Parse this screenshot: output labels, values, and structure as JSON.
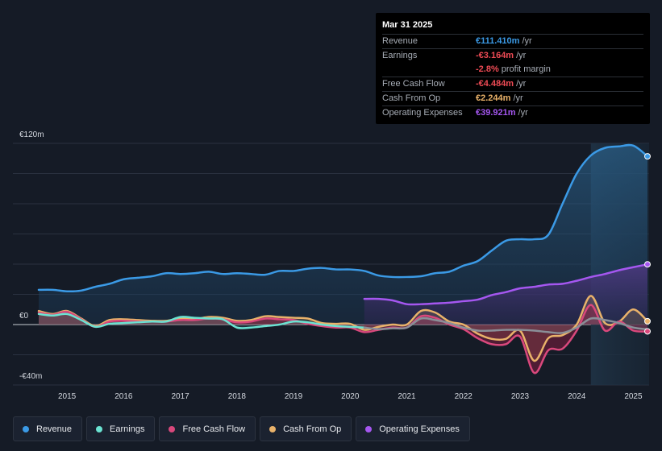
{
  "tooltip": {
    "date": "Mar 31 2025",
    "rows": [
      {
        "label": "Revenue",
        "value": "€111.410m",
        "unit": "/yr",
        "color": "#3b9ae6"
      },
      {
        "label": "Earnings",
        "value": "-€3.164m",
        "unit": "/yr",
        "color": "#ef4b55"
      },
      {
        "label": "",
        "value": "-2.8%",
        "unit": "profit margin",
        "color": "#ef4b55"
      },
      {
        "label": "Free Cash Flow",
        "value": "-€4.484m",
        "unit": "/yr",
        "color": "#ef4b55"
      },
      {
        "label": "Cash From Op",
        "value": "€2.244m",
        "unit": "/yr",
        "color": "#e9b26a"
      },
      {
        "label": "Operating Expenses",
        "value": "€39.921m",
        "unit": "/yr",
        "color": "#a557f0"
      }
    ]
  },
  "legend": [
    {
      "name": "Revenue",
      "color": "#3b9ae6"
    },
    {
      "name": "Earnings",
      "color": "#6be3d2"
    },
    {
      "name": "Free Cash Flow",
      "color": "#d9487c"
    },
    {
      "name": "Cash From Op",
      "color": "#e9b26a"
    },
    {
      "name": "Operating Expenses",
      "color": "#a557f0"
    }
  ],
  "chart_data": {
    "type": "area",
    "title": "",
    "unit": "€m",
    "ylim": [
      -40,
      120
    ],
    "y_tick_labels": [
      "€120m",
      "€0",
      "-€40m"
    ],
    "y_tick_values": [
      120,
      0,
      -40
    ],
    "x_tick_labels": [
      "2015",
      "2016",
      "2017",
      "2018",
      "2019",
      "2020",
      "2021",
      "2022",
      "2023",
      "2024",
      "2025"
    ],
    "x_tick_values": [
      2015,
      2016,
      2017,
      2018,
      2019,
      2020,
      2021,
      2022,
      2023,
      2024,
      2025
    ],
    "highlight_start": 2024.25,
    "series": [
      {
        "name": "Revenue",
        "color": "#3b9ae6",
        "x": [
          2014.5,
          2014.75,
          2015.0,
          2015.25,
          2015.5,
          2015.75,
          2016.0,
          2016.25,
          2016.5,
          2016.75,
          2017.0,
          2017.25,
          2017.5,
          2017.75,
          2018.0,
          2018.25,
          2018.5,
          2018.75,
          2019.0,
          2019.25,
          2019.5,
          2019.75,
          2020.0,
          2020.25,
          2020.5,
          2020.75,
          2021.0,
          2021.25,
          2021.5,
          2021.75,
          2022.0,
          2022.25,
          2022.5,
          2022.75,
          2023.0,
          2023.25,
          2023.5,
          2023.75,
          2024.0,
          2024.25,
          2024.5,
          2024.75,
          2025.0,
          2025.25
        ],
        "values": [
          23,
          23,
          22,
          22.5,
          25,
          27,
          30,
          31,
          32,
          34,
          33.5,
          34,
          35,
          33.5,
          34,
          33.5,
          33,
          35.5,
          35.5,
          37,
          37.5,
          36.5,
          36.5,
          35.5,
          32.5,
          31.5,
          31.5,
          32,
          34,
          35,
          39,
          42,
          49,
          55.5,
          56.5,
          56.5,
          59.5,
          80,
          100,
          112,
          117,
          118,
          118.5,
          111.4
        ]
      },
      {
        "name": "Operating Expenses",
        "color": "#a557f0",
        "x": [
          2020.25,
          2020.5,
          2020.75,
          2021.0,
          2021.25,
          2021.5,
          2021.75,
          2022.0,
          2022.25,
          2022.5,
          2022.75,
          2023.0,
          2023.25,
          2023.5,
          2023.75,
          2024.0,
          2024.25,
          2024.5,
          2024.75,
          2025.0,
          2025.25
        ],
        "values": [
          17,
          17,
          16,
          13.5,
          13.5,
          14,
          14.5,
          15.5,
          16.5,
          19.5,
          21.5,
          24,
          25,
          26.5,
          27,
          29,
          31.5,
          33.5,
          36,
          38,
          39.9
        ]
      },
      {
        "name": "Cash From Op",
        "color": "#e9b26a",
        "x": [
          2014.5,
          2014.75,
          2015.0,
          2015.25,
          2015.5,
          2015.75,
          2016.0,
          2016.25,
          2016.5,
          2016.75,
          2017.0,
          2017.25,
          2017.5,
          2017.75,
          2018.0,
          2018.25,
          2018.5,
          2018.75,
          2019.0,
          2019.25,
          2019.5,
          2019.75,
          2020.0,
          2020.25,
          2020.5,
          2020.75,
          2021.0,
          2021.25,
          2021.5,
          2021.75,
          2022.0,
          2022.25,
          2022.5,
          2022.75,
          2023.0,
          2023.25,
          2023.5,
          2023.75,
          2024.0,
          2024.25,
          2024.5,
          2024.75,
          2025.0,
          2025.25
        ],
        "values": [
          9,
          7,
          9,
          4,
          -1,
          3,
          3.5,
          3,
          2.5,
          2.5,
          4,
          3.5,
          5,
          4.5,
          2.5,
          3,
          5.5,
          5,
          4.5,
          4,
          1,
          0.5,
          0.5,
          -3.5,
          -1.5,
          0,
          0,
          9,
          8,
          2,
          0,
          -6,
          -9.5,
          -9.5,
          -4,
          -24,
          -9,
          -7,
          0,
          19,
          1,
          2,
          10,
          2.2
        ]
      },
      {
        "name": "Free Cash Flow",
        "color": "#d9487c",
        "x": [
          2014.5,
          2014.75,
          2015.0,
          2015.25,
          2015.5,
          2015.75,
          2016.0,
          2016.25,
          2016.5,
          2016.75,
          2017.0,
          2017.25,
          2017.5,
          2017.75,
          2018.0,
          2018.25,
          2018.5,
          2018.75,
          2019.0,
          2019.25,
          2019.5,
          2019.75,
          2020.0,
          2020.25,
          2020.5,
          2020.75,
          2021.0,
          2021.25,
          2021.5,
          2021.75,
          2022.0,
          2022.25,
          2022.5,
          2022.75,
          2023.0,
          2023.25,
          2023.5,
          2023.75,
          2024.0,
          2024.25,
          2024.5,
          2024.75,
          2025.0,
          2025.25
        ],
        "values": [
          8,
          6.5,
          8.5,
          3.5,
          -1.5,
          2,
          2.5,
          2,
          2,
          2,
          3,
          3,
          4,
          3.5,
          1.5,
          2,
          4,
          3.5,
          3,
          0.5,
          -1,
          -2,
          -2,
          -5,
          -3.5,
          -2,
          -2,
          5.5,
          4.5,
          0,
          -3,
          -9,
          -13,
          -13,
          -8,
          -32,
          -17,
          -16,
          -4,
          13,
          -4,
          2,
          -4,
          -4.5
        ]
      },
      {
        "name": "Earnings",
        "color": "#6be3d2",
        "x": [
          2014.5,
          2014.75,
          2015.0,
          2015.25,
          2015.5,
          2015.75,
          2016.0,
          2016.25,
          2016.5,
          2016.75,
          2017.0,
          2017.25,
          2017.5,
          2017.75,
          2018.0,
          2018.25,
          2018.5,
          2018.75,
          2019.0,
          2019.25,
          2019.5,
          2019.75,
          2020.0,
          2020.25
        ],
        "values": [
          7,
          6,
          7,
          3,
          -1.5,
          0.5,
          1,
          1.5,
          2,
          2,
          5,
          4.5,
          4,
          3.5,
          -2,
          -2,
          -1,
          0,
          2,
          1.5,
          0,
          -1,
          -1.5,
          -2
        ]
      },
      {
        "name": "Earnings (muted)",
        "color": "#8a8f98",
        "x": [
          2020.25,
          2020.5,
          2020.75,
          2021.0,
          2021.25,
          2021.5,
          2021.75,
          2022.0,
          2022.25,
          2022.5,
          2022.75,
          2023.0,
          2023.25,
          2023.5,
          2023.75,
          2024.0,
          2024.25,
          2024.5,
          2024.75,
          2025.0,
          2025.25
        ],
        "values": [
          -2,
          -3,
          -2.5,
          -2,
          4,
          3,
          1,
          -2,
          -4,
          -4,
          -3.5,
          -3.5,
          -4,
          -5,
          -5.5,
          -2,
          4,
          3,
          1,
          -2,
          -3.2
        ]
      }
    ]
  }
}
